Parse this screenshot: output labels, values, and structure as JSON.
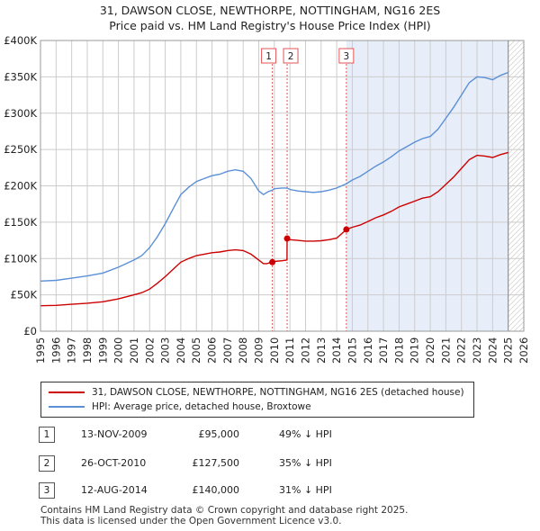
{
  "header": {
    "title_line1": "31, DAWSON CLOSE, NEWTHORPE, NOTTINGHAM, NG16 2ES",
    "title_line2": "Price paid vs. HM Land Registry's House Price Index (HPI)"
  },
  "colors": {
    "property": "#cc0000",
    "hpi": "#5b8fd6",
    "shade": "#e8eef9",
    "grid": "#cccccc",
    "marker_line": "#e05555"
  },
  "chart_data": {
    "type": "line",
    "title": "Price paid vs. HM Land Registry's House Price Index (HPI)",
    "xlabel": "",
    "ylabel": "",
    "xlim": [
      1995,
      2026
    ],
    "ylim": [
      0,
      400000
    ],
    "grid": true,
    "x_ticks": [
      1995,
      1996,
      1997,
      1998,
      1999,
      2000,
      2001,
      2002,
      2003,
      2004,
      2005,
      2006,
      2007,
      2008,
      2009,
      2010,
      2011,
      2012,
      2013,
      2014,
      2015,
      2016,
      2017,
      2018,
      2019,
      2020,
      2021,
      2022,
      2023,
      2024,
      2025,
      2026
    ],
    "y_ticks": [
      {
        "value": 0,
        "label": "£0"
      },
      {
        "value": 50000,
        "label": "£50K"
      },
      {
        "value": 100000,
        "label": "£100K"
      },
      {
        "value": 150000,
        "label": "£150K"
      },
      {
        "value": 200000,
        "label": "£200K"
      },
      {
        "value": 250000,
        "label": "£250K"
      },
      {
        "value": 300000,
        "label": "£300K"
      },
      {
        "value": 350000,
        "label": "£350K"
      },
      {
        "value": 400000,
        "label": "£400K"
      }
    ],
    "shaded_region": [
      2014.62,
      2025.0
    ],
    "hatched_region": [
      2025.0,
      2026
    ],
    "series": [
      {
        "name": "HPI: Average price, detached house, Broxtowe",
        "color": "#5b8fd6",
        "points": [
          [
            1995.0,
            69000
          ],
          [
            1996.0,
            70000
          ],
          [
            1997.0,
            73000
          ],
          [
            1998.0,
            76000
          ],
          [
            1999.0,
            80000
          ],
          [
            2000.0,
            88000
          ],
          [
            2001.0,
            98000
          ],
          [
            2001.5,
            104000
          ],
          [
            2002.0,
            115000
          ],
          [
            2002.5,
            130000
          ],
          [
            2003.0,
            148000
          ],
          [
            2003.5,
            168000
          ],
          [
            2004.0,
            188000
          ],
          [
            2004.5,
            198000
          ],
          [
            2005.0,
            206000
          ],
          [
            2005.5,
            210000
          ],
          [
            2006.0,
            214000
          ],
          [
            2006.5,
            216000
          ],
          [
            2007.0,
            220000
          ],
          [
            2007.5,
            222000
          ],
          [
            2008.0,
            220000
          ],
          [
            2008.5,
            210000
          ],
          [
            2009.0,
            193000
          ],
          [
            2009.3,
            188000
          ],
          [
            2009.6,
            192000
          ],
          [
            2009.87,
            194000
          ],
          [
            2010.0,
            196000
          ],
          [
            2010.5,
            197000
          ],
          [
            2010.82,
            197000
          ],
          [
            2011.0,
            195000
          ],
          [
            2011.5,
            193000
          ],
          [
            2012.0,
            192000
          ],
          [
            2012.5,
            191000
          ],
          [
            2013.0,
            192000
          ],
          [
            2013.5,
            194000
          ],
          [
            2014.0,
            197000
          ],
          [
            2014.62,
            203000
          ],
          [
            2015.0,
            208000
          ],
          [
            2015.5,
            213000
          ],
          [
            2016.0,
            220000
          ],
          [
            2016.5,
            227000
          ],
          [
            2017.0,
            233000
          ],
          [
            2017.5,
            240000
          ],
          [
            2018.0,
            248000
          ],
          [
            2018.5,
            254000
          ],
          [
            2019.0,
            260000
          ],
          [
            2019.5,
            265000
          ],
          [
            2020.0,
            268000
          ],
          [
            2020.5,
            278000
          ],
          [
            2021.0,
            293000
          ],
          [
            2021.5,
            308000
          ],
          [
            2022.0,
            325000
          ],
          [
            2022.5,
            342000
          ],
          [
            2023.0,
            350000
          ],
          [
            2023.5,
            349000
          ],
          [
            2024.0,
            346000
          ],
          [
            2024.5,
            352000
          ],
          [
            2025.0,
            356000
          ]
        ]
      },
      {
        "name": "31, DAWSON CLOSE, NEWTHORPE, NOTTINGHAM, NG16 2ES (detached house)",
        "color": "#cc0000",
        "points": [
          [
            1995.0,
            35000
          ],
          [
            1996.0,
            35500
          ],
          [
            1997.0,
            37000
          ],
          [
            1998.0,
            38500
          ],
          [
            1999.0,
            40500
          ],
          [
            2000.0,
            44500
          ],
          [
            2001.0,
            50000
          ],
          [
            2001.5,
            53000
          ],
          [
            2002.0,
            58000
          ],
          [
            2002.5,
            66000
          ],
          [
            2003.0,
            75000
          ],
          [
            2003.5,
            85000
          ],
          [
            2004.0,
            95000
          ],
          [
            2004.5,
            100000
          ],
          [
            2005.0,
            104000
          ],
          [
            2005.5,
            106000
          ],
          [
            2006.0,
            108000
          ],
          [
            2006.5,
            109000
          ],
          [
            2007.0,
            111000
          ],
          [
            2007.5,
            112000
          ],
          [
            2008.0,
            111000
          ],
          [
            2008.5,
            106000
          ],
          [
            2009.0,
            98000
          ],
          [
            2009.3,
            93000
          ],
          [
            2009.5,
            93000
          ],
          [
            2009.87,
            95000
          ],
          [
            2010.0,
            96000
          ],
          [
            2010.5,
            97000
          ],
          [
            2010.81,
            98000
          ],
          [
            2010.82,
            127500
          ],
          [
            2011.0,
            126000
          ],
          [
            2011.5,
            125000
          ],
          [
            2012.0,
            124000
          ],
          [
            2012.5,
            124000
          ],
          [
            2013.0,
            124500
          ],
          [
            2013.5,
            126000
          ],
          [
            2014.0,
            128000
          ],
          [
            2014.62,
            140000
          ],
          [
            2015.0,
            143000
          ],
          [
            2015.5,
            146000
          ],
          [
            2016.0,
            151000
          ],
          [
            2016.5,
            156000
          ],
          [
            2017.0,
            160000
          ],
          [
            2017.5,
            165000
          ],
          [
            2018.0,
            171000
          ],
          [
            2018.5,
            175000
          ],
          [
            2019.0,
            179000
          ],
          [
            2019.5,
            183000
          ],
          [
            2020.0,
            185000
          ],
          [
            2020.5,
            192000
          ],
          [
            2021.0,
            202000
          ],
          [
            2021.5,
            212000
          ],
          [
            2022.0,
            224000
          ],
          [
            2022.5,
            236000
          ],
          [
            2023.0,
            242000
          ],
          [
            2023.5,
            241000
          ],
          [
            2024.0,
            239000
          ],
          [
            2024.5,
            243000
          ],
          [
            2025.0,
            246000
          ]
        ]
      }
    ],
    "sales": [
      {
        "label": "1",
        "x": 2009.87,
        "y": 95000
      },
      {
        "label": "2",
        "x": 2010.82,
        "y": 127500
      },
      {
        "label": "3",
        "x": 2014.62,
        "y": 140000
      }
    ]
  },
  "legend": {
    "property_label": "31, DAWSON CLOSE, NEWTHORPE, NOTTINGHAM, NG16 2ES (detached house)",
    "hpi_label": "HPI: Average price, detached house, Broxtowe"
  },
  "transactions": [
    {
      "num": "1",
      "date": "13-NOV-2009",
      "price": "£95,000",
      "hpi": "49% ↓ HPI"
    },
    {
      "num": "2",
      "date": "26-OCT-2010",
      "price": "£127,500",
      "hpi": "35% ↓ HPI"
    },
    {
      "num": "3",
      "date": "12-AUG-2014",
      "price": "£140,000",
      "hpi": "31% ↓ HPI"
    }
  ],
  "footer": {
    "line1": "Contains HM Land Registry data © Crown copyright and database right 2025.",
    "line2": "This data is licensed under the Open Government Licence v3.0."
  }
}
